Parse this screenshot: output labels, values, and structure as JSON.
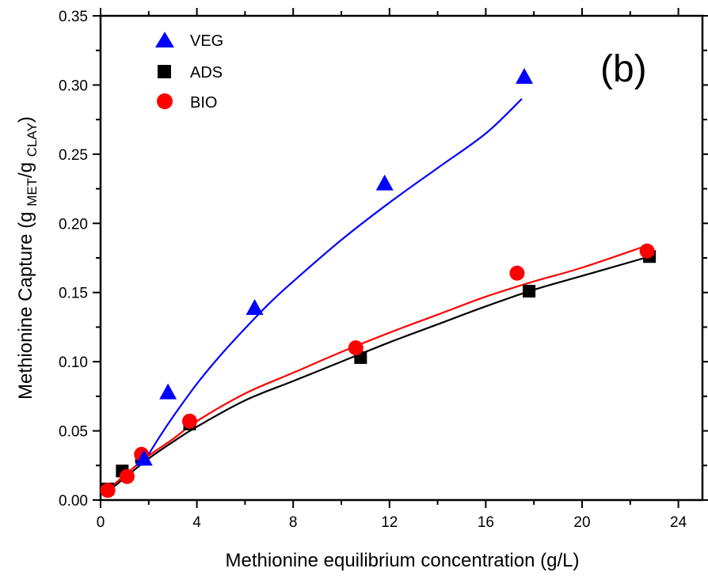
{
  "chart_data": {
    "type": "scatter",
    "panel_label": "(b)",
    "xlabel": "Methionine equilibrium concentration (g/L)",
    "ylabel": {
      "prefix": "Methionine Capture (g ",
      "sub1": "MET",
      "mid": "/g ",
      "sub2": "CLAY",
      "suffix": ")"
    },
    "xlim": [
      0,
      25
    ],
    "ylim": [
      0,
      0.35
    ],
    "xticks": [
      0,
      4,
      8,
      12,
      16,
      20,
      24
    ],
    "xtick_labels": [
      "0",
      "4",
      "8",
      "12",
      "16",
      "20",
      "24"
    ],
    "yticks": [
      0,
      0.05,
      0.1,
      0.15,
      0.2,
      0.25,
      0.3,
      0.35
    ],
    "ytick_labels": [
      "0.00",
      "0.05",
      "0.10",
      "0.15",
      "0.20",
      "0.25",
      "0.30",
      "0.35"
    ],
    "legend_position": "top-left",
    "grid": false,
    "series": [
      {
        "name": "VEG",
        "marker": "triangle",
        "color": "#0000ff",
        "x": [
          1.8,
          2.8,
          6.4,
          11.8,
          17.6
        ],
        "y": [
          0.03,
          0.078,
          0.139,
          0.229,
          0.306
        ],
        "fit": {
          "x": [
            1.8,
            2.0,
            2.5,
            3.0,
            4.0,
            5.0,
            6.0,
            7.0,
            8.0,
            10.0,
            12.0,
            14.0,
            16.0,
            17.5
          ],
          "y": [
            0.026,
            0.033,
            0.047,
            0.06,
            0.084,
            0.105,
            0.124,
            0.142,
            0.158,
            0.188,
            0.215,
            0.24,
            0.265,
            0.29
          ]
        }
      },
      {
        "name": "ADS",
        "marker": "square",
        "color": "#000000",
        "x": [
          0.3,
          0.9,
          1.7,
          3.7,
          10.8,
          17.8,
          22.8
        ],
        "y": [
          0.008,
          0.021,
          0.031,
          0.055,
          0.103,
          0.151,
          0.176
        ],
        "fit": {
          "x": [
            0.3,
            1.0,
            2.0,
            3.0,
            4.0,
            6.0,
            8.0,
            10.0,
            12.0,
            14.0,
            16.0,
            18.0,
            20.0,
            22.8
          ],
          "y": [
            0.006,
            0.016,
            0.03,
            0.042,
            0.053,
            0.072,
            0.086,
            0.1,
            0.114,
            0.127,
            0.14,
            0.152,
            0.162,
            0.176
          ]
        }
      },
      {
        "name": "BIO",
        "marker": "circle",
        "color": "#ff0000",
        "x": [
          0.3,
          1.1,
          1.7,
          3.7,
          10.6,
          17.3,
          22.7
        ],
        "y": [
          0.007,
          0.017,
          0.033,
          0.057,
          0.11,
          0.164,
          0.18
        ],
        "fit": {
          "x": [
            0.3,
            1.0,
            2.0,
            3.0,
            4.0,
            6.0,
            8.0,
            10.0,
            12.0,
            14.0,
            16.0,
            18.0,
            20.0,
            22.7
          ],
          "y": [
            0.007,
            0.018,
            0.032,
            0.044,
            0.057,
            0.077,
            0.092,
            0.107,
            0.121,
            0.134,
            0.147,
            0.158,
            0.168,
            0.184
          ]
        }
      }
    ]
  }
}
